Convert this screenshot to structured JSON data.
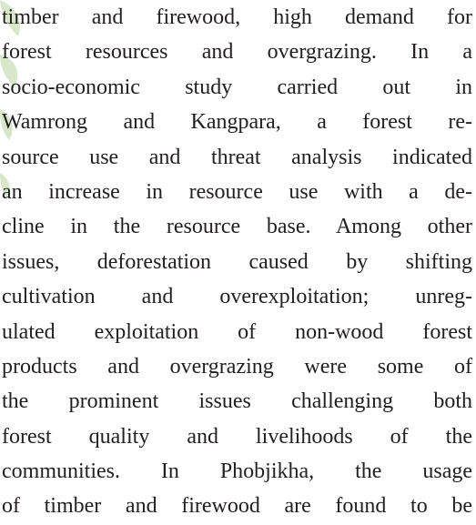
{
  "paragraph": {
    "lines": [
      "timber and firewood, high demand for",
      "forest resources and overgrazing. In a",
      "socio-economic study carried out in",
      "Wamrong and Kangpara, a forest re-",
      "source use and threat analysis indicated",
      "an increase in resource use with a de-",
      "cline in the resource base. Among other",
      "issues, deforestation caused by shifting",
      "cultivation and overexploitation; unreg-",
      "ulated exploitation of non-wood forest",
      "products and overgrazing were some of",
      "the prominent issues challenging both",
      "forest quality and livelihoods of the",
      "communities. In Phobjikha, the usage",
      "of timber and firewood are found to be"
    ]
  }
}
